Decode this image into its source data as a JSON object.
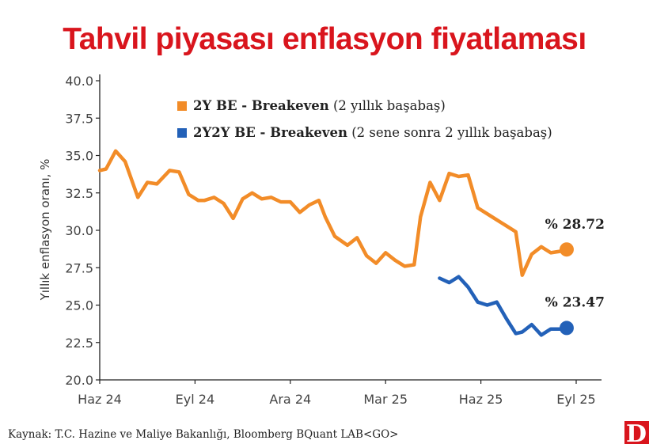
{
  "chart_data": {
    "type": "line",
    "title": "Tahvil piyasası enflasyon fiyatlaması",
    "ylabel": "Yıllık enflasyon oranı, %",
    "xlabel": "",
    "ylim": [
      20,
      40
    ],
    "yticks": [
      20,
      22.5,
      25,
      27.5,
      30,
      32.5,
      35,
      37.5,
      40
    ],
    "ytick_labels": [
      "20.0",
      "22.5",
      "25.0",
      "27.5",
      "30.0",
      "32.5",
      "35.0",
      "37.5",
      "40.0"
    ],
    "xlim": [
      0,
      16
    ],
    "xtick_positions": [
      0,
      3,
      6,
      9,
      12,
      15
    ],
    "xtick_labels": [
      "Haz 24",
      "Eyl 24",
      "Ara 24",
      "Mar 25",
      "Haz 25",
      "Eyl 25"
    ],
    "series": [
      {
        "name": "2Y BE",
        "legend_bold": "2Y BE - Breakeven",
        "legend_rest": " (2 yıllık başabaş)",
        "color": "#f28c28",
        "end_label": "% 28.72",
        "x": [
          0.0,
          0.2,
          0.5,
          0.8,
          1.2,
          1.5,
          1.8,
          2.2,
          2.5,
          2.8,
          3.1,
          3.3,
          3.6,
          3.9,
          4.2,
          4.5,
          4.8,
          5.1,
          5.4,
          5.7,
          6.0,
          6.3,
          6.6,
          6.9,
          7.1,
          7.4,
          7.8,
          8.1,
          8.4,
          8.7,
          9.0,
          9.3,
          9.6,
          9.9,
          10.1,
          10.4,
          10.7,
          11.0,
          11.3,
          11.6,
          11.9,
          12.2,
          12.5,
          12.8,
          13.1,
          13.3,
          13.6,
          13.9,
          14.2,
          14.5,
          14.7
        ],
        "y": [
          34.0,
          34.1,
          35.3,
          34.6,
          32.2,
          33.2,
          33.1,
          34.0,
          33.9,
          32.4,
          32.0,
          32.0,
          32.2,
          31.8,
          30.8,
          32.1,
          32.5,
          32.1,
          32.2,
          31.9,
          31.9,
          31.2,
          31.7,
          32.0,
          30.9,
          29.6,
          29.0,
          29.5,
          28.3,
          27.8,
          28.5,
          28.0,
          27.6,
          27.7,
          30.9,
          33.2,
          32.0,
          33.8,
          33.6,
          33.7,
          31.5,
          31.1,
          30.7,
          30.3,
          29.9,
          27.0,
          28.4,
          28.9,
          28.5,
          28.6,
          28.72
        ]
      },
      {
        "name": "2Y2Y BE",
        "legend_bold": "2Y2Y BE - Breakeven",
        "legend_rest": " (2 sene sonra 2 yıllık başabaş)",
        "color": "#2361b8",
        "end_label": "% 23.47",
        "x": [
          10.7,
          11.0,
          11.3,
          11.6,
          11.9,
          12.2,
          12.5,
          12.8,
          13.1,
          13.3,
          13.6,
          13.9,
          14.2,
          14.5,
          14.7
        ],
        "y": [
          26.8,
          26.5,
          26.9,
          26.2,
          25.2,
          25.0,
          25.2,
          24.1,
          23.1,
          23.2,
          23.7,
          23.0,
          23.4,
          23.4,
          23.47
        ]
      }
    ]
  },
  "footer": {
    "source": "Kaynak: T.C. Hazine ve Maliye Bakanlığı, Bloomberg BQuant LAB<GO>",
    "logo_text": "D",
    "logo_color": "#d9151d"
  }
}
